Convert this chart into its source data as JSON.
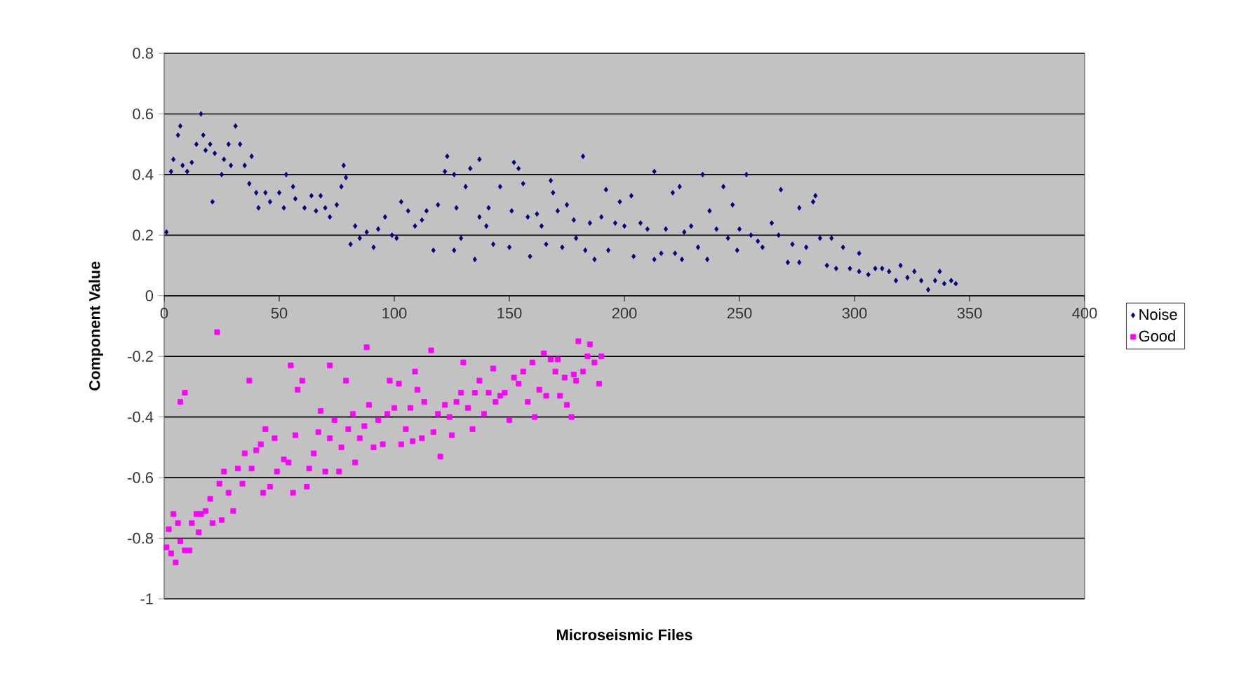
{
  "chart_data": {
    "type": "scatter",
    "xlabel": "Microseismic Files",
    "ylabel": "Component Value",
    "xlim": [
      0,
      400
    ],
    "ylim": [
      -1,
      0.8
    ],
    "xticks": [
      {
        "value": 0,
        "label": "0"
      },
      {
        "value": 50,
        "label": "50"
      },
      {
        "value": 100,
        "label": "100"
      },
      {
        "value": 150,
        "label": "150"
      },
      {
        "value": 200,
        "label": "200"
      },
      {
        "value": 250,
        "label": "250"
      },
      {
        "value": 300,
        "label": "300"
      },
      {
        "value": 350,
        "label": "350"
      },
      {
        "value": 400,
        "label": "400"
      }
    ],
    "yticks": [
      {
        "value": -1,
        "label": "-1"
      },
      {
        "value": -0.8,
        "label": "-0.8"
      },
      {
        "value": -0.6,
        "label": "-0.6"
      },
      {
        "value": -0.4,
        "label": "-0.4"
      },
      {
        "value": -0.2,
        "label": "-0.2"
      },
      {
        "value": 0,
        "label": "0"
      },
      {
        "value": 0.2,
        "label": "0.2"
      },
      {
        "value": 0.4,
        "label": "0.4"
      },
      {
        "value": 0.6,
        "label": "0.6"
      },
      {
        "value": 0.8,
        "label": "0.8"
      }
    ],
    "grid": "y",
    "legend": "right",
    "series": [
      {
        "name": "Noise",
        "color": "#000080",
        "marker": "diamond",
        "x": [
          1,
          3,
          4,
          6,
          7,
          8,
          10,
          12,
          14,
          16,
          17,
          18,
          20,
          21,
          22,
          25,
          26,
          28,
          29,
          31,
          33,
          35,
          37,
          38,
          40,
          41,
          44,
          46,
          50,
          52,
          53,
          56,
          57,
          61,
          64,
          66,
          68,
          70,
          72,
          75,
          77,
          78,
          79,
          81,
          83,
          85,
          88,
          91,
          93,
          96,
          99,
          101,
          103,
          106,
          109,
          112,
          114,
          117,
          119,
          122,
          123,
          126,
          126,
          127,
          129,
          131,
          133,
          135,
          137,
          137,
          140,
          141,
          143,
          146,
          150,
          151,
          152,
          154,
          156,
          158,
          159,
          162,
          164,
          166,
          168,
          169,
          171,
          173,
          175,
          178,
          179,
          182,
          183,
          185,
          187,
          190,
          192,
          193,
          196,
          198,
          200,
          203,
          204,
          207,
          210,
          213,
          213,
          216,
          218,
          221,
          222,
          224,
          225,
          226,
          229,
          232,
          234,
          236,
          237,
          240,
          243,
          245,
          247,
          249,
          250,
          253,
          255,
          258,
          260,
          264,
          267,
          268,
          271,
          273,
          276,
          276,
          279,
          282,
          283,
          285,
          288,
          290,
          292,
          295,
          298,
          302,
          302,
          306,
          309,
          312,
          315,
          318,
          320,
          323,
          326,
          329,
          332,
          335,
          337,
          339,
          342,
          344
        ],
        "values": [
          0.21,
          0.41,
          0.45,
          0.53,
          0.56,
          0.43,
          0.41,
          0.44,
          0.5,
          0.6,
          0.53,
          0.48,
          0.5,
          0.31,
          0.47,
          0.4,
          0.45,
          0.5,
          0.43,
          0.56,
          0.5,
          0.43,
          0.37,
          0.46,
          0.34,
          0.29,
          0.34,
          0.31,
          0.34,
          0.29,
          0.4,
          0.36,
          0.32,
          0.29,
          0.33,
          0.28,
          0.33,
          0.29,
          0.26,
          0.3,
          0.36,
          0.43,
          0.39,
          0.17,
          0.23,
          0.19,
          0.21,
          0.16,
          0.22,
          0.26,
          0.2,
          0.19,
          0.31,
          0.28,
          0.23,
          0.25,
          0.28,
          0.15,
          0.3,
          0.41,
          0.46,
          0.4,
          0.15,
          0.29,
          0.19,
          0.36,
          0.42,
          0.12,
          0.45,
          0.26,
          0.23,
          0.29,
          0.17,
          0.36,
          0.16,
          0.28,
          0.44,
          0.42,
          0.37,
          0.26,
          0.13,
          0.27,
          0.23,
          0.17,
          0.38,
          0.34,
          0.28,
          0.16,
          0.3,
          0.25,
          0.19,
          0.46,
          0.15,
          0.24,
          0.12,
          0.26,
          0.35,
          0.15,
          0.24,
          0.31,
          0.23,
          0.33,
          0.13,
          0.24,
          0.22,
          0.41,
          0.12,
          0.14,
          0.22,
          0.34,
          0.14,
          0.36,
          0.12,
          0.21,
          0.23,
          0.16,
          0.4,
          0.12,
          0.28,
          0.22,
          0.36,
          0.19,
          0.3,
          0.15,
          0.22,
          0.4,
          0.2,
          0.18,
          0.16,
          0.24,
          0.2,
          0.35,
          0.11,
          0.17,
          0.29,
          0.11,
          0.16,
          0.31,
          0.33,
          0.19,
          0.1,
          0.19,
          0.09,
          0.16,
          0.09,
          0.14,
          0.08,
          0.07,
          0.09,
          0.09,
          0.08,
          0.05,
          0.1,
          0.06,
          0.08,
          0.05,
          0.02,
          0.05,
          0.08,
          0.04,
          0.05,
          0.04
        ]
      },
      {
        "name": "Good",
        "color": "#ff00ff",
        "marker": "square",
        "x": [
          1,
          3,
          2,
          4,
          5,
          6,
          7,
          7,
          9,
          9,
          11,
          12,
          14,
          15,
          16,
          18,
          20,
          21,
          23,
          24,
          25,
          26,
          28,
          30,
          32,
          34,
          35,
          37,
          38,
          40,
          42,
          43,
          44,
          46,
          48,
          49,
          52,
          54,
          55,
          56,
          57,
          58,
          60,
          62,
          63,
          65,
          67,
          68,
          70,
          72,
          72,
          74,
          76,
          77,
          79,
          80,
          82,
          83,
          85,
          87,
          88,
          89,
          91,
          93,
          95,
          97,
          98,
          100,
          102,
          103,
          105,
          107,
          108,
          109,
          110,
          112,
          113,
          116,
          117,
          119,
          120,
          122,
          124,
          125,
          127,
          129,
          130,
          132,
          134,
          135,
          137,
          139,
          141,
          143,
          144,
          146,
          148,
          150,
          152,
          154,
          156,
          158,
          160,
          161,
          163,
          165,
          166,
          168,
          170,
          171,
          172,
          174,
          175,
          177,
          178,
          180,
          179,
          182,
          184,
          185,
          187,
          189,
          190
        ],
        "values": [
          -0.83,
          -0.85,
          -0.77,
          -0.72,
          -0.88,
          -0.75,
          -0.81,
          -0.35,
          -0.32,
          -0.84,
          -0.84,
          -0.75,
          -0.72,
          -0.78,
          -0.72,
          -0.71,
          -0.67,
          -0.75,
          -0.12,
          -0.62,
          -0.74,
          -0.58,
          -0.65,
          -0.71,
          -0.57,
          -0.62,
          -0.52,
          -0.28,
          -0.57,
          -0.51,
          -0.49,
          -0.65,
          -0.44,
          -0.63,
          -0.47,
          -0.58,
          -0.54,
          -0.55,
          -0.23,
          -0.65,
          -0.46,
          -0.31,
          -0.28,
          -0.63,
          -0.57,
          -0.52,
          -0.45,
          -0.38,
          -0.58,
          -0.47,
          -0.23,
          -0.41,
          -0.58,
          -0.5,
          -0.28,
          -0.44,
          -0.39,
          -0.55,
          -0.47,
          -0.43,
          -0.17,
          -0.36,
          -0.5,
          -0.41,
          -0.49,
          -0.39,
          -0.28,
          -0.37,
          -0.29,
          -0.49,
          -0.44,
          -0.37,
          -0.48,
          -0.25,
          -0.31,
          -0.47,
          -0.35,
          -0.18,
          -0.45,
          -0.39,
          -0.53,
          -0.36,
          -0.4,
          -0.46,
          -0.35,
          -0.32,
          -0.22,
          -0.37,
          -0.44,
          -0.32,
          -0.28,
          -0.39,
          -0.32,
          -0.24,
          -0.35,
          -0.33,
          -0.32,
          -0.41,
          -0.27,
          -0.29,
          -0.25,
          -0.35,
          -0.22,
          -0.4,
          -0.31,
          -0.19,
          -0.33,
          -0.21,
          -0.25,
          -0.21,
          -0.33,
          -0.27,
          -0.36,
          -0.4,
          -0.26,
          -0.15,
          -0.28,
          -0.25,
          -0.2,
          -0.16,
          -0.22,
          -0.29,
          -0.2
        ]
      }
    ]
  }
}
